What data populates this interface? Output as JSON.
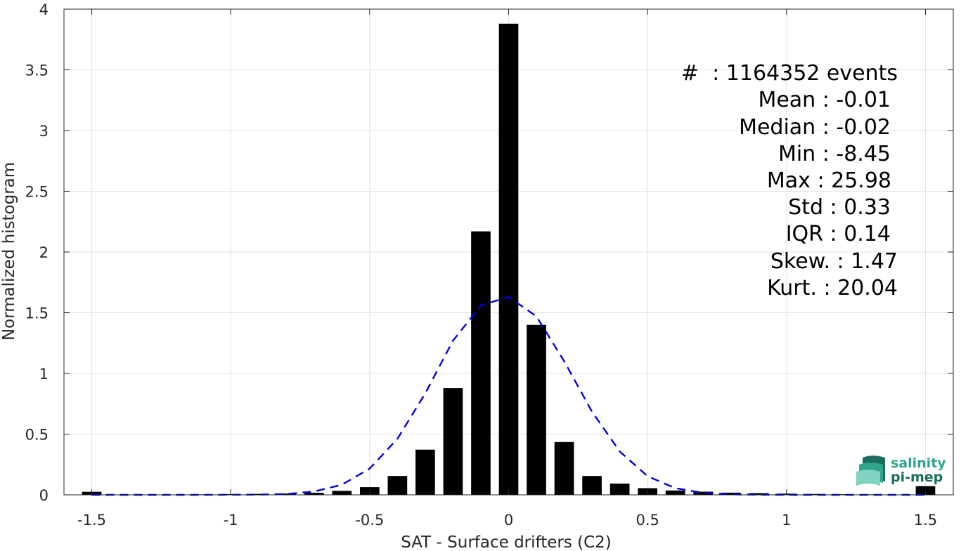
{
  "chart_data": {
    "type": "bar",
    "xlabel": "SAT - Surface drifters (C2)",
    "ylabel": "Normalized histogram",
    "xlim": [
      -1.6,
      1.6
    ],
    "ylim": [
      0,
      4
    ],
    "xticks": [
      -1.5,
      -1,
      -0.5,
      0,
      0.5,
      1,
      1.5
    ],
    "xtick_labels": [
      "-1.5",
      "-1",
      "-0.5",
      "0",
      "0.5",
      "1",
      "1.5"
    ],
    "yticks": [
      0,
      0.5,
      1,
      1.5,
      2,
      2.5,
      3,
      3.5,
      4
    ],
    "ytick_labels": [
      "0",
      "0.5",
      "1",
      "1.5",
      "2",
      "2.5",
      "3",
      "3.5",
      "4"
    ],
    "grid": true,
    "bar_width": 0.07,
    "series": [
      {
        "kind": "bar",
        "color": "#000000",
        "x": [
          -1.5,
          -1.4,
          -1.3,
          -1.2,
          -1.1,
          -1.0,
          -0.9,
          -0.8,
          -0.7,
          -0.6,
          -0.5,
          -0.4,
          -0.3,
          -0.2,
          -0.1,
          0.0,
          0.1,
          0.2,
          0.3,
          0.4,
          0.5,
          0.6,
          0.7,
          0.8,
          0.9,
          1.0,
          1.1,
          1.2,
          1.3,
          1.4,
          1.5
        ],
        "values": [
          0.025,
          0.003,
          0.003,
          0.003,
          0.004,
          0.006,
          0.008,
          0.011,
          0.017,
          0.033,
          0.063,
          0.155,
          0.372,
          0.878,
          2.17,
          3.88,
          1.4,
          0.435,
          0.155,
          0.093,
          0.055,
          0.036,
          0.026,
          0.018,
          0.014,
          0.01,
          0.007,
          0.005,
          0.004,
          0.003,
          0.072
        ]
      },
      {
        "kind": "line",
        "style": "dashed",
        "color": "#0000e6",
        "x": [
          -1.5,
          -1.4,
          -1.3,
          -1.2,
          -1.1,
          -1.0,
          -0.9,
          -0.8,
          -0.7,
          -0.6,
          -0.5,
          -0.4,
          -0.3,
          -0.2,
          -0.1,
          0.0,
          0.1,
          0.2,
          0.3,
          0.4,
          0.5,
          0.6,
          0.7,
          0.8,
          0.9,
          1.0,
          1.1,
          1.2,
          1.3,
          1.4,
          1.5
        ],
        "values": [
          0,
          0,
          0,
          0,
          0,
          0.001,
          0.002,
          0.007,
          0.027,
          0.083,
          0.216,
          0.462,
          0.835,
          1.27,
          1.56,
          1.63,
          1.47,
          1.1,
          0.685,
          0.357,
          0.153,
          0.055,
          0.016,
          0.004,
          0.001,
          0,
          0,
          0,
          0,
          0,
          0
        ]
      }
    ],
    "annotations": [
      "#  : 1164352 events",
      "Mean : -0.01",
      "Median : -0.02",
      "Min : -8.45",
      "Max : 25.98",
      "Std : 0.33",
      "IQR : 0.14",
      "Skew. : 1.47",
      "Kurt. : 20.04"
    ]
  },
  "logo": {
    "line1": "salinity",
    "line2": "pi-mep",
    "color_primary": "#2fa68c",
    "color_secondary": "#1b6e5e"
  }
}
